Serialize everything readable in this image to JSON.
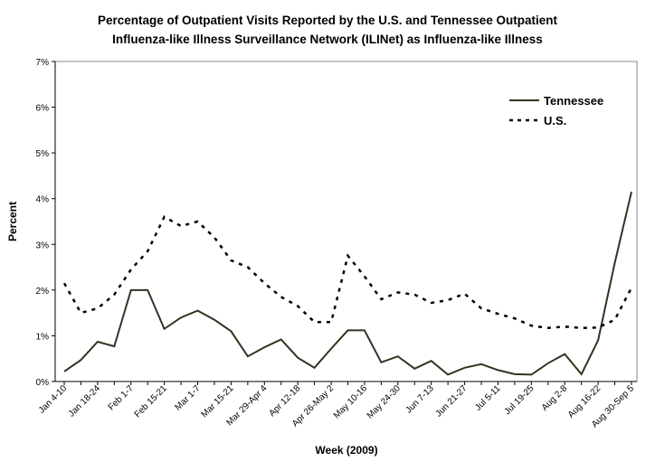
{
  "chart_data": {
    "type": "line",
    "title": [
      "Percentage of Outpatient Visits Reported by the U.S. and Tennessee Outpatient",
      "Influenza-like Illness Surveillance Network (ILINet) as Influenza-like Illness"
    ],
    "xlabel": "Week (2009)",
    "ylabel": "Percent",
    "ylim": [
      0,
      7
    ],
    "yticks": [
      "0%",
      "1%",
      "2%",
      "3%",
      "4%",
      "5%",
      "6%",
      "7%"
    ],
    "xtick_labels": [
      "Jan 4-10",
      "Jan 18-24",
      "Feb 1-7",
      "Feb 15-21",
      "Mar 1-7",
      "Mar 15-21",
      "Mar 29-Apr 4",
      "Apr 12-18",
      "Apr 26-May 2",
      "May 10-16",
      "May 24-30",
      "Jun 7-13",
      "Jun 21-27",
      "Jul 5-11",
      "Jul 19-25",
      "Aug 2-8",
      "Aug 16-22",
      "Aug 30-Sep 5"
    ],
    "legend_position": "top-right",
    "grid": false,
    "series": [
      {
        "name": "Tennessee",
        "style": "solid",
        "color": "#333322",
        "values": [
          0.22,
          0.47,
          0.87,
          0.77,
          2.0,
          2.0,
          1.15,
          1.4,
          1.55,
          1.35,
          1.1,
          0.55,
          0.75,
          0.92,
          0.52,
          0.3,
          0.72,
          1.12,
          1.12,
          0.42,
          0.55,
          0.28,
          0.45,
          0.15,
          0.3,
          0.38,
          0.25,
          0.16,
          0.15,
          0.4,
          0.6,
          0.16,
          0.9,
          2.6,
          4.15
        ]
      },
      {
        "name": "U.S.",
        "style": "dashed",
        "color": "#000000",
        "values": [
          2.15,
          1.5,
          1.6,
          1.9,
          2.45,
          2.85,
          3.6,
          3.4,
          3.5,
          3.15,
          2.65,
          2.5,
          2.15,
          1.85,
          1.65,
          1.3,
          1.3,
          2.75,
          2.3,
          1.8,
          1.95,
          1.9,
          1.72,
          1.78,
          1.92,
          1.6,
          1.48,
          1.38,
          1.22,
          1.17,
          1.2,
          1.17,
          1.18,
          1.35,
          2.05
        ]
      }
    ]
  }
}
